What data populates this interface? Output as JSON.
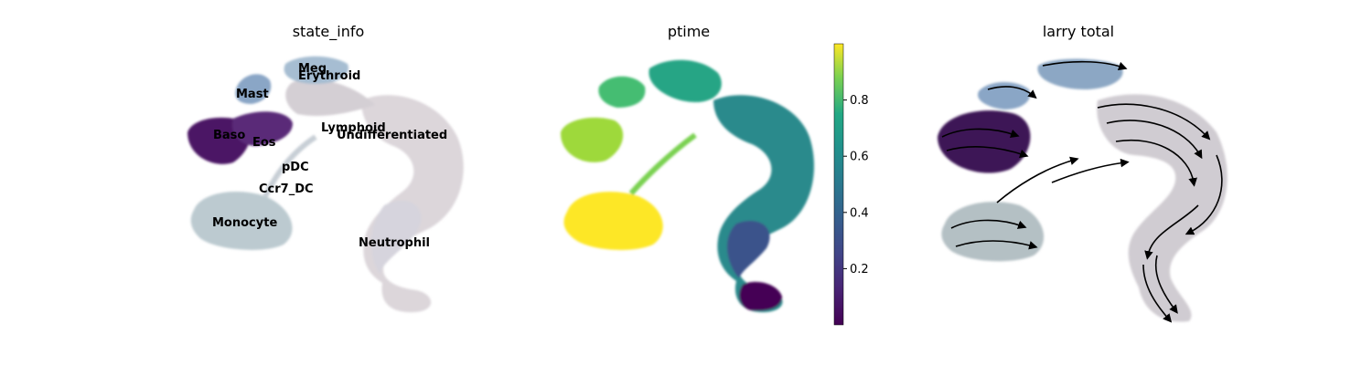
{
  "chart_data": [
    {
      "type": "scatter",
      "title": "state_info",
      "legend": "on data",
      "axes": "off",
      "categories": [
        "Meg",
        "Erythroid",
        "Mast",
        "Lymphoid",
        "Undifferentiated",
        "Baso",
        "Eos",
        "pDC",
        "Ccr7_DC",
        "Monocyte",
        "Neutrophil"
      ],
      "colors": {
        "Meg": "#a6bdd2",
        "Erythroid": "#b0c4d7",
        "Mast": "#8aa6c6",
        "Lymphoid": "#d4cfd4",
        "Undifferentiated": "#dcd6da",
        "Baso": "#4b1865",
        "Eos": "#5a2a78",
        "pDC": "#6a3c87",
        "Ccr7_DC": "#c8cfd6",
        "Monocyte": "#bccad0",
        "Neutrophil": "#d8d6de"
      }
    },
    {
      "type": "scatter",
      "title": "ptime",
      "axes": "off",
      "colorbar": {
        "colormap": "viridis",
        "range": [
          0.0,
          1.0
        ],
        "ticks": [
          0.2,
          0.4,
          0.6,
          0.8
        ],
        "tick_labels": [
          "0.2",
          "0.4",
          "0.6",
          "0.8"
        ]
      }
    },
    {
      "type": "scatter",
      "title": "larry total",
      "axes": "off",
      "overlay": "velocity streamlines with arrowheads"
    }
  ]
}
